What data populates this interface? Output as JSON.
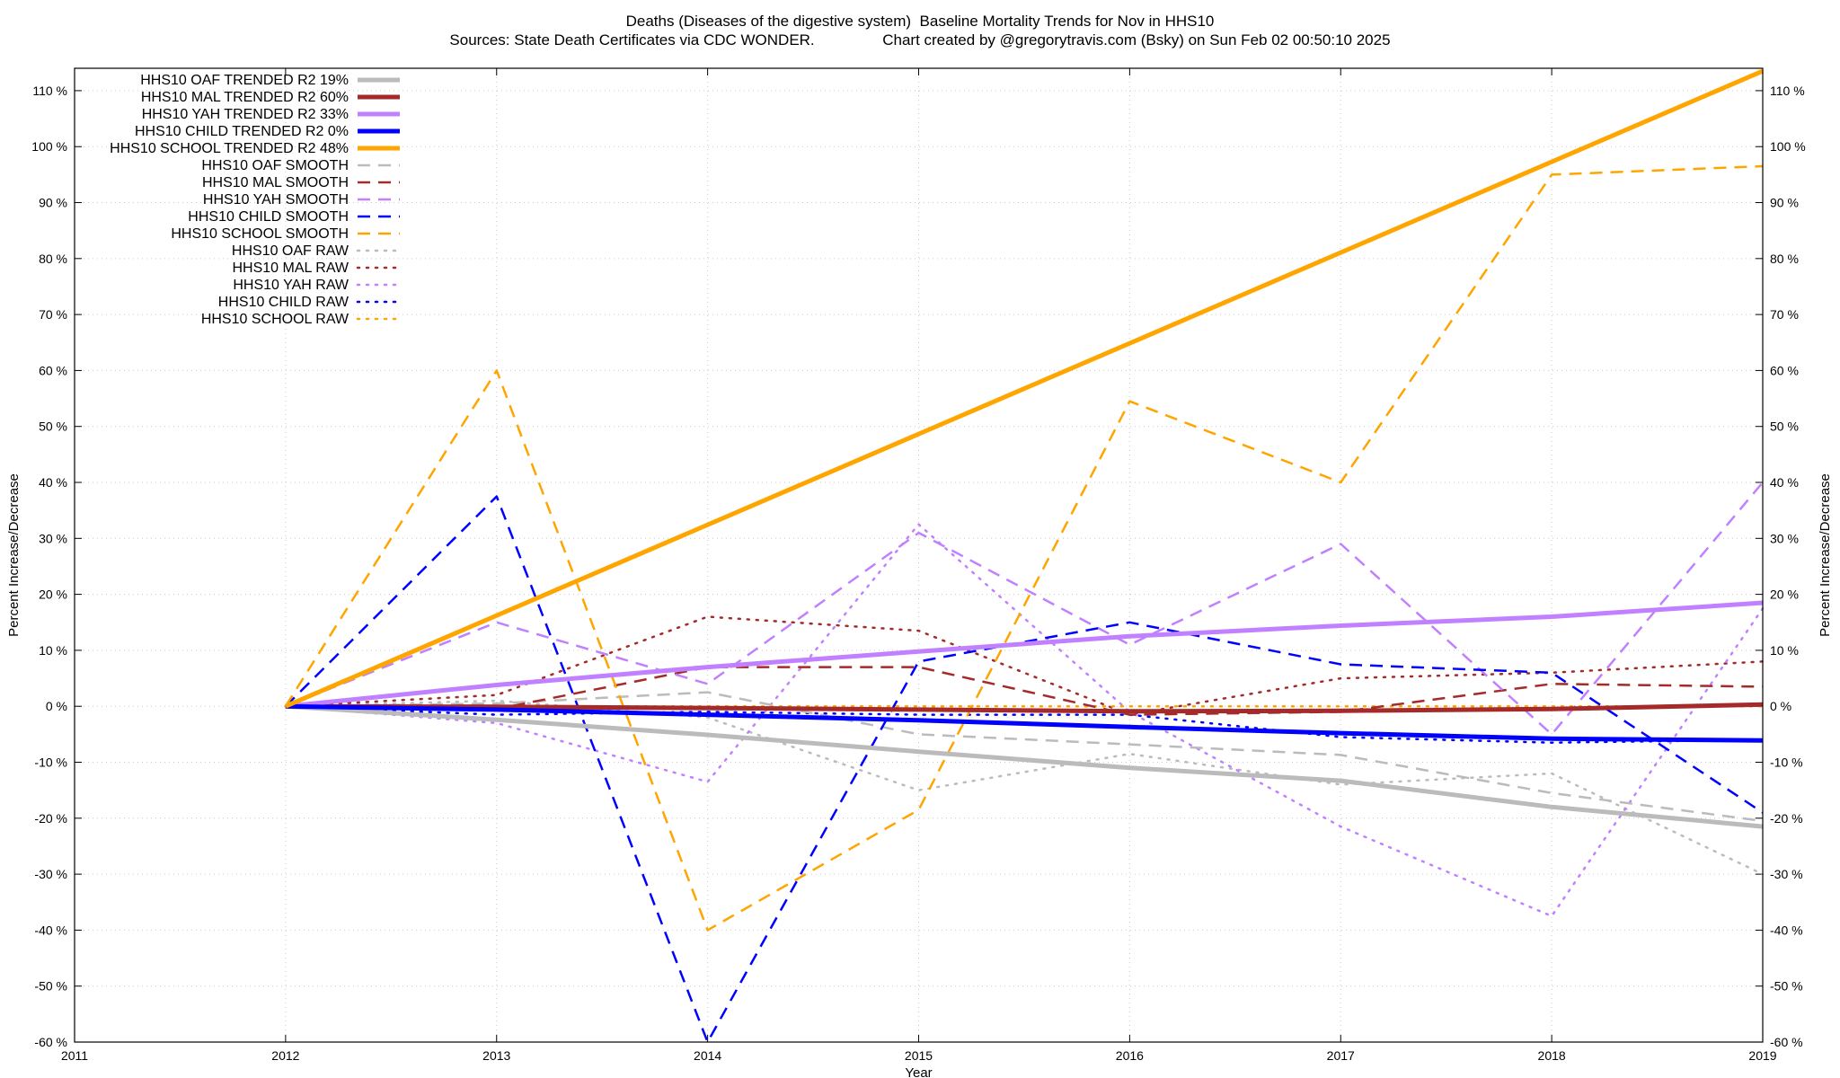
{
  "chart_data": {
    "type": "line",
    "title": "Deaths (Diseases of the digestive system)  Baseline Mortality Trends for Nov in HHS10",
    "subtitle": "Sources: State Death Certificates via CDC WONDER.                Chart created by @gregorytravis.com (Bsky) on Sun Feb 02 00:50:10 2025",
    "xlabel": "Year",
    "ylabel": "Percent Increase/Decrease",
    "y2label": "Percent Increase/Decrease",
    "xlim": [
      2011,
      2019
    ],
    "ylim": [
      -60,
      114
    ],
    "x_ticks": [
      2011,
      2012,
      2013,
      2014,
      2015,
      2016,
      2017,
      2018,
      2019
    ],
    "y_ticks": [
      -60,
      -50,
      -40,
      -30,
      -20,
      -10,
      0,
      10,
      20,
      30,
      40,
      50,
      60,
      70,
      80,
      90,
      100,
      110
    ],
    "y_tick_suffix": " %",
    "grid": true,
    "legend_position": "top-left",
    "series": [
      {
        "name": "HHS10 OAF TRENDED R2  19%",
        "style": "solid",
        "color": "#bbbbbb",
        "width": 5,
        "x": [
          2012,
          2013,
          2014,
          2015,
          2016,
          2017,
          2018,
          2019
        ],
        "values": [
          0,
          -2.4,
          -5.1,
          -8.1,
          -11,
          -13.3,
          -18,
          -21.5
        ]
      },
      {
        "name": "HHS10 MAL TRENDED R2  60%",
        "style": "solid",
        "color": "#a52a2a",
        "width": 5,
        "x": [
          2012,
          2013,
          2014,
          2015,
          2016,
          2017,
          2018,
          2019
        ],
        "values": [
          0,
          -0.1,
          -0.3,
          -0.6,
          -0.9,
          -0.8,
          -0.5,
          0.3
        ]
      },
      {
        "name": "HHS10 YAH TRENDED R2  33%",
        "style": "solid",
        "color": "#c080ff",
        "width": 5,
        "x": [
          2012,
          2013,
          2014,
          2015,
          2016,
          2017,
          2018,
          2019
        ],
        "values": [
          0,
          3.8,
          7,
          9.8,
          12.5,
          14.4,
          16,
          18.5
        ]
      },
      {
        "name": "HHS10 CHILD TRENDED R2   0%",
        "style": "solid",
        "color": "#0000ff",
        "width": 5,
        "x": [
          2012,
          2013,
          2014,
          2015,
          2016,
          2017,
          2018,
          2019
        ],
        "values": [
          0,
          -0.6,
          -1.5,
          -2.5,
          -3.7,
          -4.8,
          -5.8,
          -6.1
        ]
      },
      {
        "name": "HHS10 SCHOOL TRENDED R2  48%",
        "style": "solid",
        "color": "#ffa500",
        "width": 5,
        "x": [
          2012,
          2019
        ],
        "values": [
          0,
          113.5
        ]
      },
      {
        "name": "HHS10 OAF SMOOTH",
        "style": "dashed",
        "color": "#bbbbbb",
        "width": 2.5,
        "x": [
          2012,
          2013,
          2014,
          2015,
          2016,
          2017,
          2018,
          2019
        ],
        "values": [
          0,
          0.5,
          2.5,
          -5,
          -6.8,
          -8.7,
          -15.5,
          -20.5
        ]
      },
      {
        "name": "HHS10 MAL SMOOTH",
        "style": "dashed",
        "color": "#a52a2a",
        "width": 2.5,
        "x": [
          2012,
          2013,
          2014,
          2015,
          2016,
          2017,
          2018,
          2019
        ],
        "values": [
          0,
          -0.5,
          7,
          7,
          -1.5,
          -1,
          4,
          3.5
        ]
      },
      {
        "name": "HHS10 YAH SMOOTH",
        "style": "dashed",
        "color": "#c080ff",
        "width": 2.5,
        "x": [
          2012,
          2013,
          2014,
          2015,
          2016,
          2017,
          2018,
          2019
        ],
        "values": [
          0,
          15,
          4,
          31,
          11,
          29,
          -5,
          40
        ]
      },
      {
        "name": "HHS10 CHILD SMOOTH",
        "style": "dashed",
        "color": "#0000ff",
        "width": 2.5,
        "x": [
          2012,
          2013,
          2014,
          2015,
          2016,
          2017,
          2018,
          2019
        ],
        "values": [
          0,
          37.5,
          -60,
          8,
          15,
          7.5,
          6,
          -19
        ]
      },
      {
        "name": "HHS10 SCHOOL SMOOTH",
        "style": "dashed",
        "color": "#ffa500",
        "width": 2.5,
        "x": [
          2012,
          2013,
          2014,
          2015,
          2016,
          2017,
          2018,
          2019
        ],
        "values": [
          0,
          60,
          -40,
          -18.5,
          54.5,
          40,
          95,
          96.5
        ]
      },
      {
        "name": "HHS10 OAF RAW",
        "style": "dotted",
        "color": "#bbbbbb",
        "width": 2.5,
        "x": [
          2012,
          2013,
          2014,
          2015,
          2016,
          2017,
          2018,
          2019
        ],
        "values": [
          0,
          1,
          -2,
          -15,
          -8.5,
          -14,
          -12,
          -30
        ]
      },
      {
        "name": "HHS10 MAL RAW",
        "style": "dotted",
        "color": "#a52a2a",
        "width": 2.5,
        "x": [
          2012,
          2013,
          2014,
          2015,
          2016,
          2017,
          2018,
          2019
        ],
        "values": [
          0,
          2,
          16,
          13.5,
          -1.5,
          5,
          6,
          8
        ]
      },
      {
        "name": "HHS10 YAH RAW",
        "style": "dotted",
        "color": "#c080ff",
        "width": 2.5,
        "x": [
          2012,
          2013,
          2014,
          2015,
          2016,
          2017,
          2018,
          2019
        ],
        "values": [
          0,
          -3,
          -13.5,
          32.5,
          -1,
          -21.5,
          -37.5,
          17.5
        ]
      },
      {
        "name": "HHS10 CHILD RAW",
        "style": "dotted",
        "color": "#0000ff",
        "width": 2.5,
        "x": [
          2012,
          2013,
          2014,
          2015,
          2016,
          2017,
          2018,
          2019
        ],
        "values": [
          0,
          -1.5,
          -1,
          -1.5,
          -1.5,
          -5.5,
          -6.5,
          -6
        ]
      },
      {
        "name": "HHS10 SCHOOL RAW",
        "style": "dotted",
        "color": "#ffa500",
        "width": 2.5,
        "x": [
          2012,
          2013,
          2014,
          2015,
          2016,
          2017,
          2018,
          2019
        ],
        "values": [
          0,
          0,
          0,
          0,
          0,
          0,
          0,
          0
        ]
      }
    ]
  }
}
